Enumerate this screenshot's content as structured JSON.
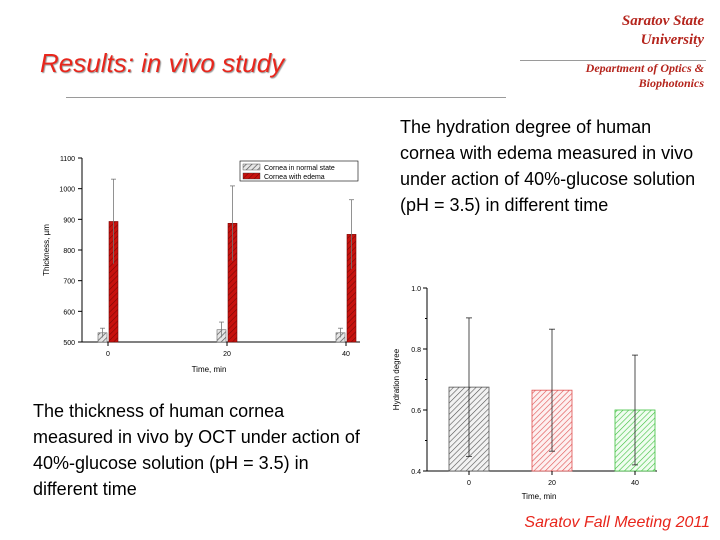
{
  "header": {
    "title": "Results: in vivo study",
    "university_line1": "Saratov State",
    "university_line2": "University",
    "department_line1": "Department of Optics &",
    "department_line2": "Biophotonics"
  },
  "captions": {
    "top_right": "The hydration degree of human cornea with edema measured in vivo under action of 40%-glucose solution (pH = 3.5) in different time",
    "bottom_left": "The thickness of human cornea measured in vivo by OCT under action of 40%-glucose solution (pH = 3.5) in different time"
  },
  "footer": {
    "text": "Saratov Fall Meeting 2011"
  },
  "colors": {
    "accent": "#e8261c",
    "university": "#b5251d",
    "edema_bar": "#c8120e",
    "normal_bar": "#9a9a9a"
  },
  "chart_data": [
    {
      "type": "bar",
      "categories": [
        "0",
        "20",
        "40"
      ],
      "xlabel": "Time, min",
      "ylabel": "Thickness, µm",
      "ylim": [
        500,
        1100
      ],
      "yticks": [
        500,
        600,
        700,
        800,
        900,
        1000,
        1100
      ],
      "legend_position": "top-right",
      "series": [
        {
          "name": "Cornea in normal state",
          "values": [
            530,
            540,
            530
          ],
          "errors": [
            15,
            25,
            15
          ],
          "pattern": "gray-hatched"
        },
        {
          "name": "Cornea with edema",
          "values": [
            893,
            887,
            851
          ],
          "errors": [
            138,
            122,
            113
          ],
          "pattern": "red-hatched"
        }
      ]
    },
    {
      "type": "bar",
      "categories": [
        "0",
        "20",
        "40"
      ],
      "xlabel": "Time, min",
      "ylabel": "Hydration degree",
      "ylim": [
        0.4,
        1.0
      ],
      "yticks": [
        0.4,
        0.6,
        0.8,
        1.0
      ],
      "values": [
        0.675,
        0.665,
        0.6
      ],
      "errors": [
        0.227,
        0.2,
        0.18
      ],
      "bar_colors": [
        "#555555",
        "#e05050",
        "#40c040"
      ]
    }
  ]
}
